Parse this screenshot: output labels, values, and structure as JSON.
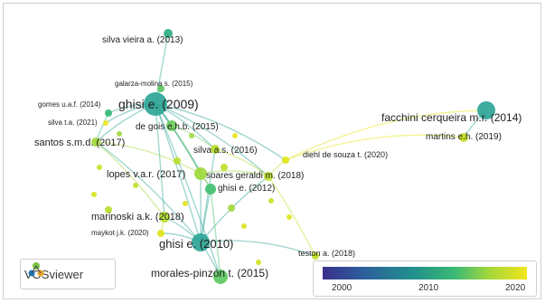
{
  "nodes": [
    {
      "id": "silva_vieira",
      "label": "silva vieira a. (2013)",
      "color": "#2fae7d"
    },
    {
      "id": "galarza",
      "label": "galarza-molina s. (2015)",
      "color": "#5cc462"
    },
    {
      "id": "ghisi2009",
      "label": "ghisi e. (2009)",
      "color": "#2ea596"
    },
    {
      "id": "gomes",
      "label": "gomes u.a.f. (2014)",
      "color": "#35b779"
    },
    {
      "id": "silva_ta",
      "label": "silva t.a. (2021)",
      "color": "#f0e51f"
    },
    {
      "id": "de_gois",
      "label": "de gois e.h.b. (2015)",
      "color": "#6ccd5a"
    },
    {
      "id": "santos",
      "label": "santos s.m.d. (2017)",
      "color": "#a2d73c"
    },
    {
      "id": "silva_as",
      "label": "silva a.s. (2016)",
      "color": "#b8de29"
    },
    {
      "id": "diehl",
      "label": "diehl de souza t. (2020)",
      "color": "#e2e418"
    },
    {
      "id": "lopes",
      "label": "lopes v.a.r. (2017)",
      "color": "#9fd93b"
    },
    {
      "id": "soares",
      "label": "soares geraldi m. (2018)",
      "color": "#bddf26"
    },
    {
      "id": "ghisi2012",
      "label": "ghisi e. (2012)",
      "color": "#43bf71"
    },
    {
      "id": "marinoski",
      "label": "marinoski a.k. (2018)",
      "color": "#b5de2b"
    },
    {
      "id": "maykot",
      "label": "maykot j.k. (2020)",
      "color": "#e0e31b"
    },
    {
      "id": "ghisi2010",
      "label": "ghisi e. (2010)",
      "color": "#2ea596"
    },
    {
      "id": "morales",
      "label": "morales-pinzón t. (2015)",
      "color": "#5ec962"
    },
    {
      "id": "teston",
      "label": "teston a. (2018)",
      "color": "#c2df23"
    },
    {
      "id": "facchini",
      "label": "facchini cerqueira m.r. (2014)",
      "color": "#2ea596"
    },
    {
      "id": "martins",
      "label": "martins e.h. (2019)",
      "color": "#c8e020"
    }
  ],
  "logo": {
    "text": "VOSviewer",
    "icon": "vosviewer-logo-icon"
  },
  "legend": {
    "ticks": [
      "2000",
      "2010",
      "2020"
    ]
  }
}
